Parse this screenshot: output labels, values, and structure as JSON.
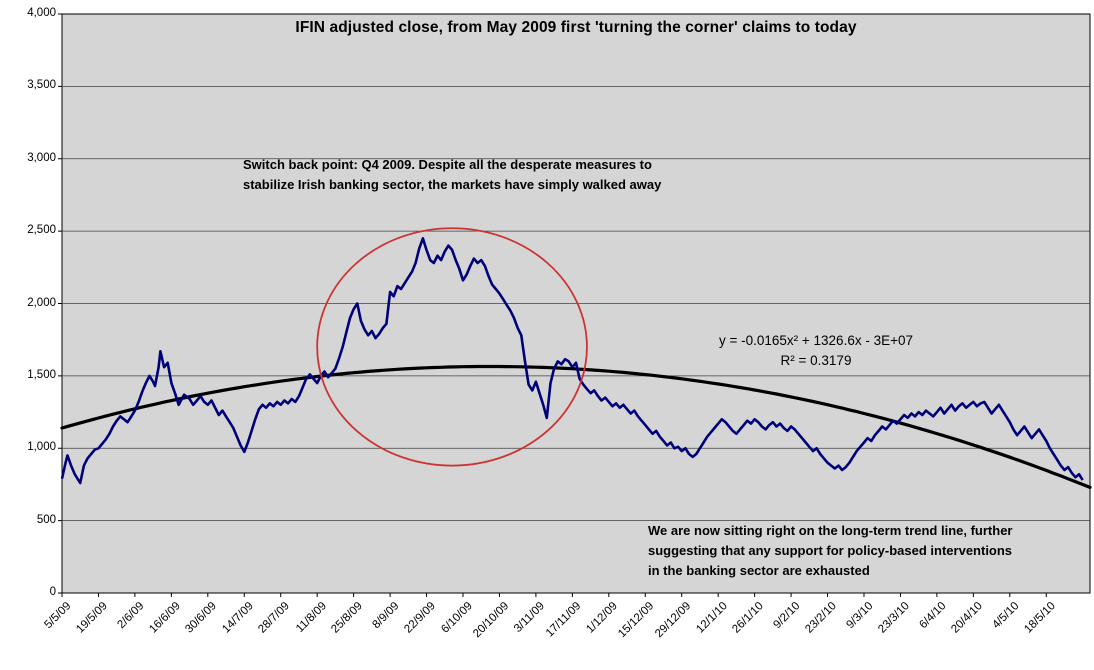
{
  "chart_data": {
    "type": "line",
    "title": "IFIN adjusted close, from May 2009 first 'turning the corner' claims to today",
    "xlabel": "",
    "ylabel": "",
    "ylim": [
      0,
      4000
    ],
    "x_range": [
      0,
      28.2
    ],
    "grid": true,
    "legend": "none",
    "plot_bg": "#D5D5D5",
    "grid_color": "#404040",
    "y_ticks": [
      {
        "v": 0,
        "label": "0"
      },
      {
        "v": 500,
        "label": "500"
      },
      {
        "v": 1000,
        "label": "1,000"
      },
      {
        "v": 1500,
        "label": "1,500"
      },
      {
        "v": 2000,
        "label": "2,000"
      },
      {
        "v": 2500,
        "label": "2,500"
      },
      {
        "v": 3000,
        "label": "3,000"
      },
      {
        "v": 3500,
        "label": "3,500"
      },
      {
        "v": 4000,
        "label": "4,000"
      }
    ],
    "x_tick_labels": [
      "5/5/09",
      "19/5/09",
      "2/6/09",
      "16/6/09",
      "30/6/09",
      "14/7/09",
      "28/7/09",
      "11/8/09",
      "25/8/09",
      "8/9/09",
      "22/9/09",
      "6/10/09",
      "20/10/09",
      "3/11/09",
      "17/11/09",
      "1/12/09",
      "15/12/09",
      "29/12/09",
      "12/1/10",
      "26/1/10",
      "9/2/10",
      "23/2/10",
      "9/3/10",
      "23/3/10",
      "6/4/10",
      "20/4/10",
      "4/5/10",
      "18/5/10"
    ],
    "series": [
      {
        "name": "IFIN adjusted close",
        "color": "#00007B",
        "width": 2.6,
        "points": [
          [
            0,
            790
          ],
          [
            0.1,
            900
          ],
          [
            0.15,
            950
          ],
          [
            0.25,
            880
          ],
          [
            0.35,
            820
          ],
          [
            0.5,
            760
          ],
          [
            0.6,
            880
          ],
          [
            0.7,
            930
          ],
          [
            0.8,
            960
          ],
          [
            0.9,
            990
          ],
          [
            1.0,
            1000
          ],
          [
            1.1,
            1030
          ],
          [
            1.2,
            1060
          ],
          [
            1.3,
            1100
          ],
          [
            1.4,
            1150
          ],
          [
            1.5,
            1190
          ],
          [
            1.6,
            1220
          ],
          [
            1.7,
            1200
          ],
          [
            1.8,
            1180
          ],
          [
            1.9,
            1220
          ],
          [
            2.0,
            1260
          ],
          [
            2.1,
            1320
          ],
          [
            2.2,
            1390
          ],
          [
            2.3,
            1450
          ],
          [
            2.4,
            1500
          ],
          [
            2.5,
            1460
          ],
          [
            2.55,
            1430
          ],
          [
            2.65,
            1560
          ],
          [
            2.7,
            1670
          ],
          [
            2.8,
            1560
          ],
          [
            2.9,
            1590
          ],
          [
            3.0,
            1450
          ],
          [
            3.1,
            1380
          ],
          [
            3.2,
            1300
          ],
          [
            3.35,
            1370
          ],
          [
            3.5,
            1340
          ],
          [
            3.6,
            1300
          ],
          [
            3.7,
            1330
          ],
          [
            3.8,
            1360
          ],
          [
            3.9,
            1320
          ],
          [
            4.0,
            1300
          ],
          [
            4.1,
            1330
          ],
          [
            4.2,
            1280
          ],
          [
            4.3,
            1230
          ],
          [
            4.4,
            1260
          ],
          [
            4.5,
            1220
          ],
          [
            4.6,
            1180
          ],
          [
            4.7,
            1140
          ],
          [
            4.8,
            1080
          ],
          [
            4.9,
            1020
          ],
          [
            5.0,
            975
          ],
          [
            5.1,
            1040
          ],
          [
            5.2,
            1120
          ],
          [
            5.3,
            1200
          ],
          [
            5.4,
            1270
          ],
          [
            5.5,
            1300
          ],
          [
            5.6,
            1280
          ],
          [
            5.7,
            1310
          ],
          [
            5.8,
            1290
          ],
          [
            5.9,
            1320
          ],
          [
            6.0,
            1300
          ],
          [
            6.1,
            1330
          ],
          [
            6.2,
            1310
          ],
          [
            6.3,
            1340
          ],
          [
            6.4,
            1320
          ],
          [
            6.5,
            1360
          ],
          [
            6.6,
            1420
          ],
          [
            6.7,
            1480
          ],
          [
            6.8,
            1510
          ],
          [
            6.9,
            1480
          ],
          [
            7.0,
            1450
          ],
          [
            7.1,
            1500
          ],
          [
            7.2,
            1530
          ],
          [
            7.3,
            1490
          ],
          [
            7.4,
            1520
          ],
          [
            7.5,
            1550
          ],
          [
            7.6,
            1620
          ],
          [
            7.7,
            1700
          ],
          [
            7.8,
            1800
          ],
          [
            7.9,
            1900
          ],
          [
            8.0,
            1960
          ],
          [
            8.1,
            2000
          ],
          [
            8.2,
            1880
          ],
          [
            8.3,
            1820
          ],
          [
            8.4,
            1780
          ],
          [
            8.5,
            1810
          ],
          [
            8.6,
            1760
          ],
          [
            8.7,
            1790
          ],
          [
            8.8,
            1830
          ],
          [
            8.9,
            1860
          ],
          [
            9.0,
            2080
          ],
          [
            9.1,
            2050
          ],
          [
            9.2,
            2120
          ],
          [
            9.3,
            2100
          ],
          [
            9.4,
            2140
          ],
          [
            9.5,
            2180
          ],
          [
            9.6,
            2220
          ],
          [
            9.7,
            2280
          ],
          [
            9.8,
            2380
          ],
          [
            9.9,
            2450
          ],
          [
            10.0,
            2370
          ],
          [
            10.1,
            2300
          ],
          [
            10.2,
            2280
          ],
          [
            10.3,
            2330
          ],
          [
            10.4,
            2300
          ],
          [
            10.5,
            2360
          ],
          [
            10.6,
            2400
          ],
          [
            10.7,
            2370
          ],
          [
            10.8,
            2300
          ],
          [
            10.9,
            2240
          ],
          [
            11.0,
            2160
          ],
          [
            11.1,
            2200
          ],
          [
            11.2,
            2260
          ],
          [
            11.3,
            2310
          ],
          [
            11.4,
            2280
          ],
          [
            11.5,
            2300
          ],
          [
            11.6,
            2260
          ],
          [
            11.7,
            2190
          ],
          [
            11.8,
            2130
          ],
          [
            11.9,
            2100
          ],
          [
            12.0,
            2070
          ],
          [
            12.1,
            2030
          ],
          [
            12.2,
            1990
          ],
          [
            12.3,
            1950
          ],
          [
            12.4,
            1900
          ],
          [
            12.5,
            1830
          ],
          [
            12.6,
            1780
          ],
          [
            12.7,
            1600
          ],
          [
            12.8,
            1440
          ],
          [
            12.9,
            1400
          ],
          [
            13.0,
            1460
          ],
          [
            13.1,
            1380
          ],
          [
            13.2,
            1300
          ],
          [
            13.3,
            1210
          ],
          [
            13.4,
            1450
          ],
          [
            13.5,
            1550
          ],
          [
            13.6,
            1600
          ],
          [
            13.7,
            1580
          ],
          [
            13.8,
            1615
          ],
          [
            13.9,
            1600
          ],
          [
            14.0,
            1560
          ],
          [
            14.1,
            1590
          ],
          [
            14.2,
            1480
          ],
          [
            14.3,
            1440
          ],
          [
            14.4,
            1410
          ],
          [
            14.5,
            1380
          ],
          [
            14.6,
            1400
          ],
          [
            14.7,
            1360
          ],
          [
            14.8,
            1330
          ],
          [
            14.9,
            1350
          ],
          [
            15.0,
            1320
          ],
          [
            15.1,
            1290
          ],
          [
            15.2,
            1310
          ],
          [
            15.3,
            1280
          ],
          [
            15.4,
            1300
          ],
          [
            15.5,
            1270
          ],
          [
            15.6,
            1240
          ],
          [
            15.7,
            1260
          ],
          [
            15.8,
            1220
          ],
          [
            15.9,
            1190
          ],
          [
            16.0,
            1160
          ],
          [
            16.1,
            1130
          ],
          [
            16.2,
            1100
          ],
          [
            16.3,
            1120
          ],
          [
            16.4,
            1080
          ],
          [
            16.5,
            1050
          ],
          [
            16.6,
            1020
          ],
          [
            16.7,
            1040
          ],
          [
            16.8,
            1000
          ],
          [
            16.9,
            1010
          ],
          [
            17.0,
            980
          ],
          [
            17.1,
            1000
          ],
          [
            17.2,
            960
          ],
          [
            17.3,
            940
          ],
          [
            17.4,
            960
          ],
          [
            17.5,
            1000
          ],
          [
            17.6,
            1040
          ],
          [
            17.7,
            1080
          ],
          [
            17.8,
            1110
          ],
          [
            17.9,
            1140
          ],
          [
            18.0,
            1170
          ],
          [
            18.1,
            1200
          ],
          [
            18.2,
            1180
          ],
          [
            18.3,
            1150
          ],
          [
            18.4,
            1120
          ],
          [
            18.5,
            1100
          ],
          [
            18.6,
            1130
          ],
          [
            18.7,
            1160
          ],
          [
            18.8,
            1190
          ],
          [
            18.9,
            1170
          ],
          [
            19.0,
            1200
          ],
          [
            19.1,
            1180
          ],
          [
            19.2,
            1150
          ],
          [
            19.3,
            1130
          ],
          [
            19.4,
            1160
          ],
          [
            19.5,
            1180
          ],
          [
            19.6,
            1150
          ],
          [
            19.7,
            1170
          ],
          [
            19.8,
            1140
          ],
          [
            19.9,
            1120
          ],
          [
            20.0,
            1150
          ],
          [
            20.1,
            1130
          ],
          [
            20.2,
            1100
          ],
          [
            20.3,
            1070
          ],
          [
            20.4,
            1040
          ],
          [
            20.5,
            1010
          ],
          [
            20.6,
            980
          ],
          [
            20.7,
            1000
          ],
          [
            20.8,
            960
          ],
          [
            20.9,
            930
          ],
          [
            21.0,
            900
          ],
          [
            21.1,
            880
          ],
          [
            21.2,
            860
          ],
          [
            21.3,
            880
          ],
          [
            21.4,
            850
          ],
          [
            21.5,
            870
          ],
          [
            21.6,
            900
          ],
          [
            21.7,
            940
          ],
          [
            21.8,
            980
          ],
          [
            21.9,
            1010
          ],
          [
            22.0,
            1040
          ],
          [
            22.1,
            1070
          ],
          [
            22.2,
            1050
          ],
          [
            22.3,
            1090
          ],
          [
            22.4,
            1120
          ],
          [
            22.5,
            1150
          ],
          [
            22.6,
            1130
          ],
          [
            22.7,
            1160
          ],
          [
            22.8,
            1190
          ],
          [
            22.9,
            1170
          ],
          [
            23.0,
            1200
          ],
          [
            23.1,
            1230
          ],
          [
            23.2,
            1210
          ],
          [
            23.3,
            1240
          ],
          [
            23.4,
            1220
          ],
          [
            23.5,
            1250
          ],
          [
            23.6,
            1230
          ],
          [
            23.7,
            1260
          ],
          [
            23.8,
            1240
          ],
          [
            23.9,
            1220
          ],
          [
            24.0,
            1250
          ],
          [
            24.1,
            1280
          ],
          [
            24.2,
            1240
          ],
          [
            24.3,
            1270
          ],
          [
            24.4,
            1300
          ],
          [
            24.5,
            1260
          ],
          [
            24.6,
            1290
          ],
          [
            24.7,
            1310
          ],
          [
            24.8,
            1280
          ],
          [
            24.9,
            1300
          ],
          [
            25.0,
            1320
          ],
          [
            25.1,
            1290
          ],
          [
            25.2,
            1310
          ],
          [
            25.3,
            1320
          ],
          [
            25.4,
            1280
          ],
          [
            25.5,
            1240
          ],
          [
            25.6,
            1270
          ],
          [
            25.7,
            1300
          ],
          [
            25.8,
            1260
          ],
          [
            25.9,
            1220
          ],
          [
            26.0,
            1180
          ],
          [
            26.1,
            1130
          ],
          [
            26.2,
            1090
          ],
          [
            26.3,
            1120
          ],
          [
            26.4,
            1150
          ],
          [
            26.5,
            1110
          ],
          [
            26.6,
            1070
          ],
          [
            26.7,
            1100
          ],
          [
            26.8,
            1130
          ],
          [
            26.9,
            1090
          ],
          [
            27.0,
            1050
          ],
          [
            27.1,
            1000
          ],
          [
            27.2,
            960
          ],
          [
            27.3,
            920
          ],
          [
            27.4,
            880
          ],
          [
            27.5,
            850
          ],
          [
            27.6,
            870
          ],
          [
            27.7,
            830
          ],
          [
            27.8,
            800
          ],
          [
            27.9,
            820
          ],
          [
            28.0,
            780
          ]
        ]
      }
    ],
    "trendline": {
      "name": "polynomial-order-2-trend",
      "color": "#000000",
      "width": 3.2,
      "peak_u": 11.74,
      "peak_v": 1565,
      "a": 3.084,
      "equation": "y = -0.0165x² + 1326.6x - 3E+07",
      "r2": "R² = 0.3179"
    },
    "annotation_ellipse": {
      "u": 10.7,
      "v": 1700,
      "ru": 3.7,
      "rv": 820,
      "color": "#CC3333",
      "width": 1.8
    },
    "annotations": {
      "switch_back": "Switch back point: Q4 2009. Despite all the desperate measures to\nstabilize Irish banking sector, the markets have simply walked away",
      "trend_note": "We are now sitting right on the long-term trend line, further\nsuggesting that any support for policy-based interventions\nin the banking sector are exhausted"
    }
  }
}
